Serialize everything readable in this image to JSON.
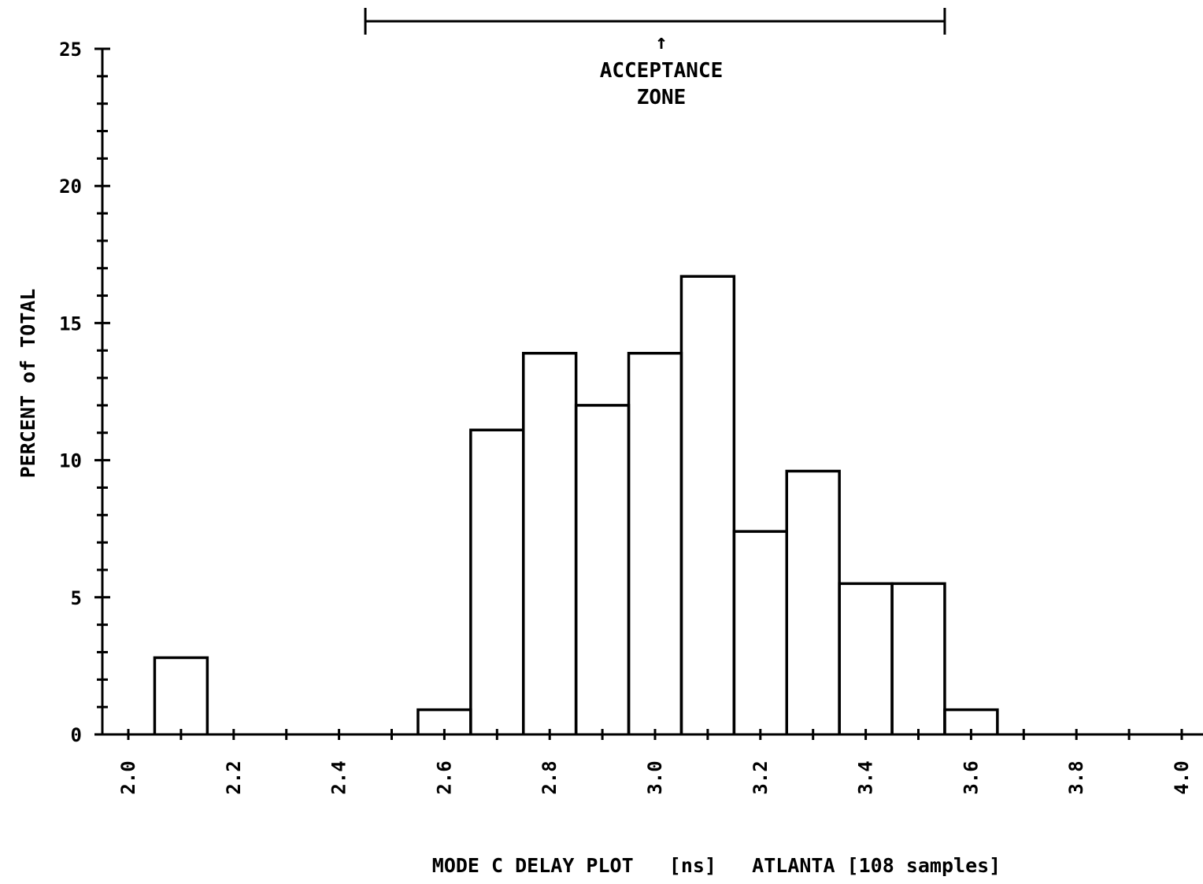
{
  "chart_data": {
    "type": "bar",
    "xlabel": "MODE C DELAY PLOT   [ns]   ATLANTA [108 samples]",
    "ylabel": "PERCENT of TOTAL",
    "xlim": [
      2.0,
      4.0
    ],
    "ylim": [
      0,
      25
    ],
    "xticks": [
      "2.0",
      "2.2",
      "2.4",
      "2.6",
      "2.8",
      "3.0",
      "3.2",
      "3.4",
      "3.6",
      "3.8",
      "4.0"
    ],
    "yticks": [
      "0",
      "5",
      "10",
      "15",
      "20",
      "25"
    ],
    "bin_width": 0.1,
    "bins": [
      {
        "x0": 2.05,
        "x1": 2.15,
        "value": 2.8
      },
      {
        "x0": 2.55,
        "x1": 2.65,
        "value": 0.9
      },
      {
        "x0": 2.65,
        "x1": 2.75,
        "value": 11.1
      },
      {
        "x0": 2.75,
        "x1": 2.85,
        "value": 13.9
      },
      {
        "x0": 2.85,
        "x1": 2.95,
        "value": 12.0
      },
      {
        "x0": 2.95,
        "x1": 3.05,
        "value": 13.9
      },
      {
        "x0": 3.05,
        "x1": 3.15,
        "value": 16.7
      },
      {
        "x0": 3.15,
        "x1": 3.25,
        "value": 7.4
      },
      {
        "x0": 3.25,
        "x1": 3.35,
        "value": 9.6
      },
      {
        "x0": 3.35,
        "x1": 3.45,
        "value": 5.5
      },
      {
        "x0": 3.45,
        "x1": 3.55,
        "value": 5.5
      },
      {
        "x0": 3.55,
        "x1": 3.65,
        "value": 0.9
      }
    ],
    "acceptance_zone": {
      "x_range": [
        2.45,
        3.55
      ],
      "arrow": "↑",
      "label_line1": "ACCEPTANCE",
      "label_line2": "ZONE"
    },
    "grid": false,
    "legend": "none"
  }
}
